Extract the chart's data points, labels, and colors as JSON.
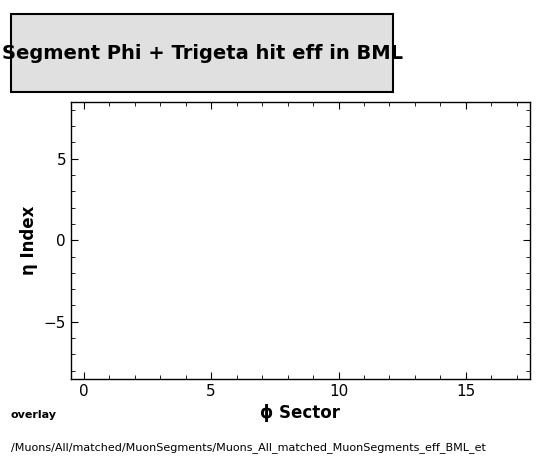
{
  "title": "Segment Phi + Trigeta hit eff in BML",
  "xlabel": "ϕ Sector",
  "ylabel": "η Index",
  "xlim": [
    -0.5,
    17.5
  ],
  "ylim": [
    -8.5,
    8.5
  ],
  "xticks": [
    0,
    5,
    10,
    15
  ],
  "yticks": [
    -5,
    0,
    5
  ],
  "background_color": "#ffffff",
  "plot_bg_color": "#ffffff",
  "footer_line1": "overlay",
  "footer_line2": "/Muons/All/matched/MuonSegments/Muons_All_matched_MuonSegments_eff_BML_et",
  "title_fontsize": 14,
  "axis_label_fontsize": 12,
  "tick_fontsize": 11,
  "footer_fontsize": 8,
  "title_box_color": "#e0e0e0"
}
